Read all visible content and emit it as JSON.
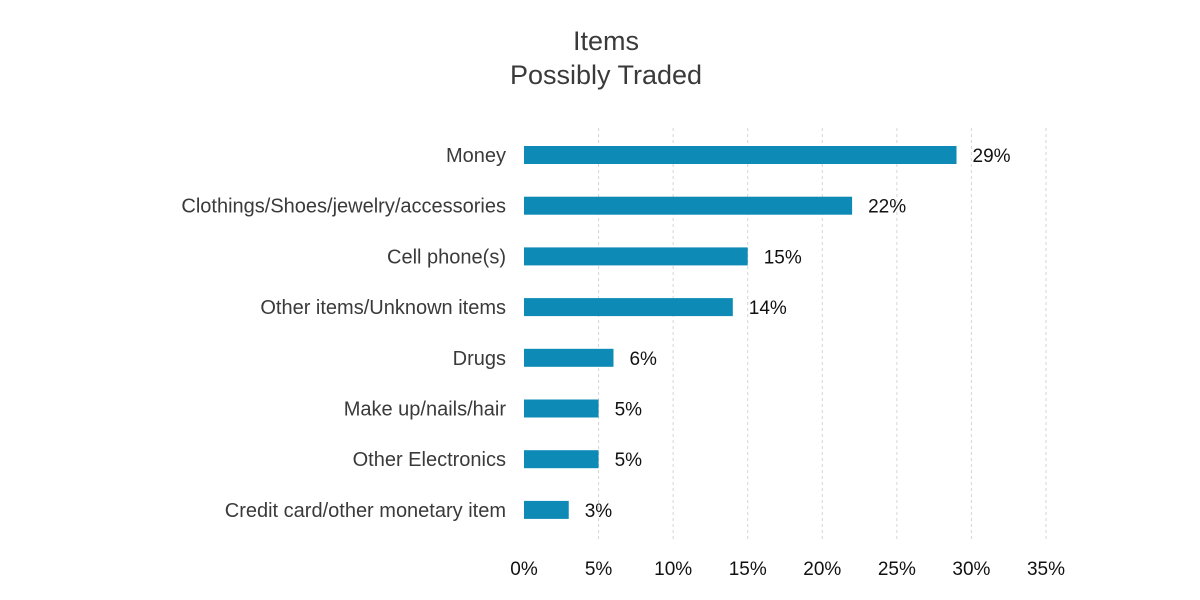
{
  "chart_data": {
    "type": "bar",
    "orientation": "horizontal",
    "title": [
      "Items",
      "Possibly Traded"
    ],
    "categories": [
      "Money",
      "Clothings/Shoes/jewelry/accessories",
      "Cell phone(s)",
      "Other items/Unknown items",
      "Drugs",
      "Make up/nails/hair",
      "Other Electronics",
      "Credit card/other monetary item"
    ],
    "values": [
      29,
      22,
      15,
      14,
      6,
      5,
      5,
      3
    ],
    "value_labels": [
      "29%",
      "22%",
      "15%",
      "14%",
      "6%",
      "5%",
      "5%",
      "3%"
    ],
    "xlim": [
      0,
      35
    ],
    "xticks": [
      0,
      5,
      10,
      15,
      20,
      25,
      30,
      35
    ],
    "xtick_labels": [
      "0%",
      "5%",
      "10%",
      "15%",
      "20%",
      "25%",
      "30%",
      "35%"
    ],
    "grid": "vertical dashed",
    "legend": "none",
    "bar_color": "#0d8ab5"
  }
}
